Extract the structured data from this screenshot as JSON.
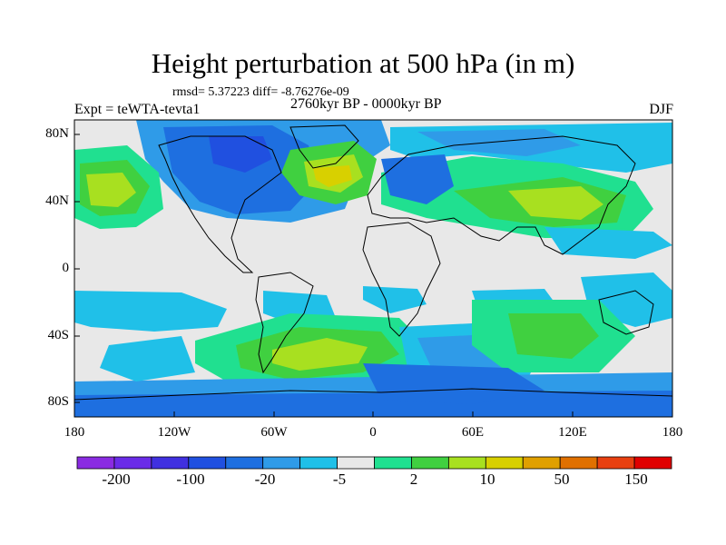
{
  "title": "Height perturbation at 500 hPa (in m)",
  "stats_text": "rmsd= 5.37223 diff= -8.76276e-09",
  "experiment": "Expt = teWTA-tevta1",
  "period": "2760kyr BP - 0000kyr BP",
  "season": "DJF",
  "lat_labels": [
    "80N",
    "40N",
    "0",
    "40S",
    "80S"
  ],
  "lon_labels": [
    "180",
    "120W",
    "60W",
    "0",
    "60E",
    "120E",
    "180"
  ],
  "colorbar": {
    "labels": [
      "-200",
      "-100",
      "-20",
      "-5",
      "2",
      "10",
      "50",
      "150"
    ],
    "colors": [
      "#8a2be2",
      "#6a2be8",
      "#4030e0",
      "#2050e0",
      "#1e6fe0",
      "#2f9be8",
      "#20c0e8",
      "#e8e8e8",
      "#20e090",
      "#40d040",
      "#a8e020",
      "#d8d000",
      "#e0a000",
      "#e07000",
      "#e84010",
      "#e00000"
    ]
  },
  "palette": {
    "neutral": "#e8e8e8",
    "light_blue": "#20c0e8",
    "mid_blue": "#2f9be8",
    "blue": "#1e6fe0",
    "dark_blue": "#2050e0",
    "teal_green": "#20e090",
    "green": "#40d040",
    "yellow_green": "#a8e020",
    "yellow": "#d8d000"
  }
}
